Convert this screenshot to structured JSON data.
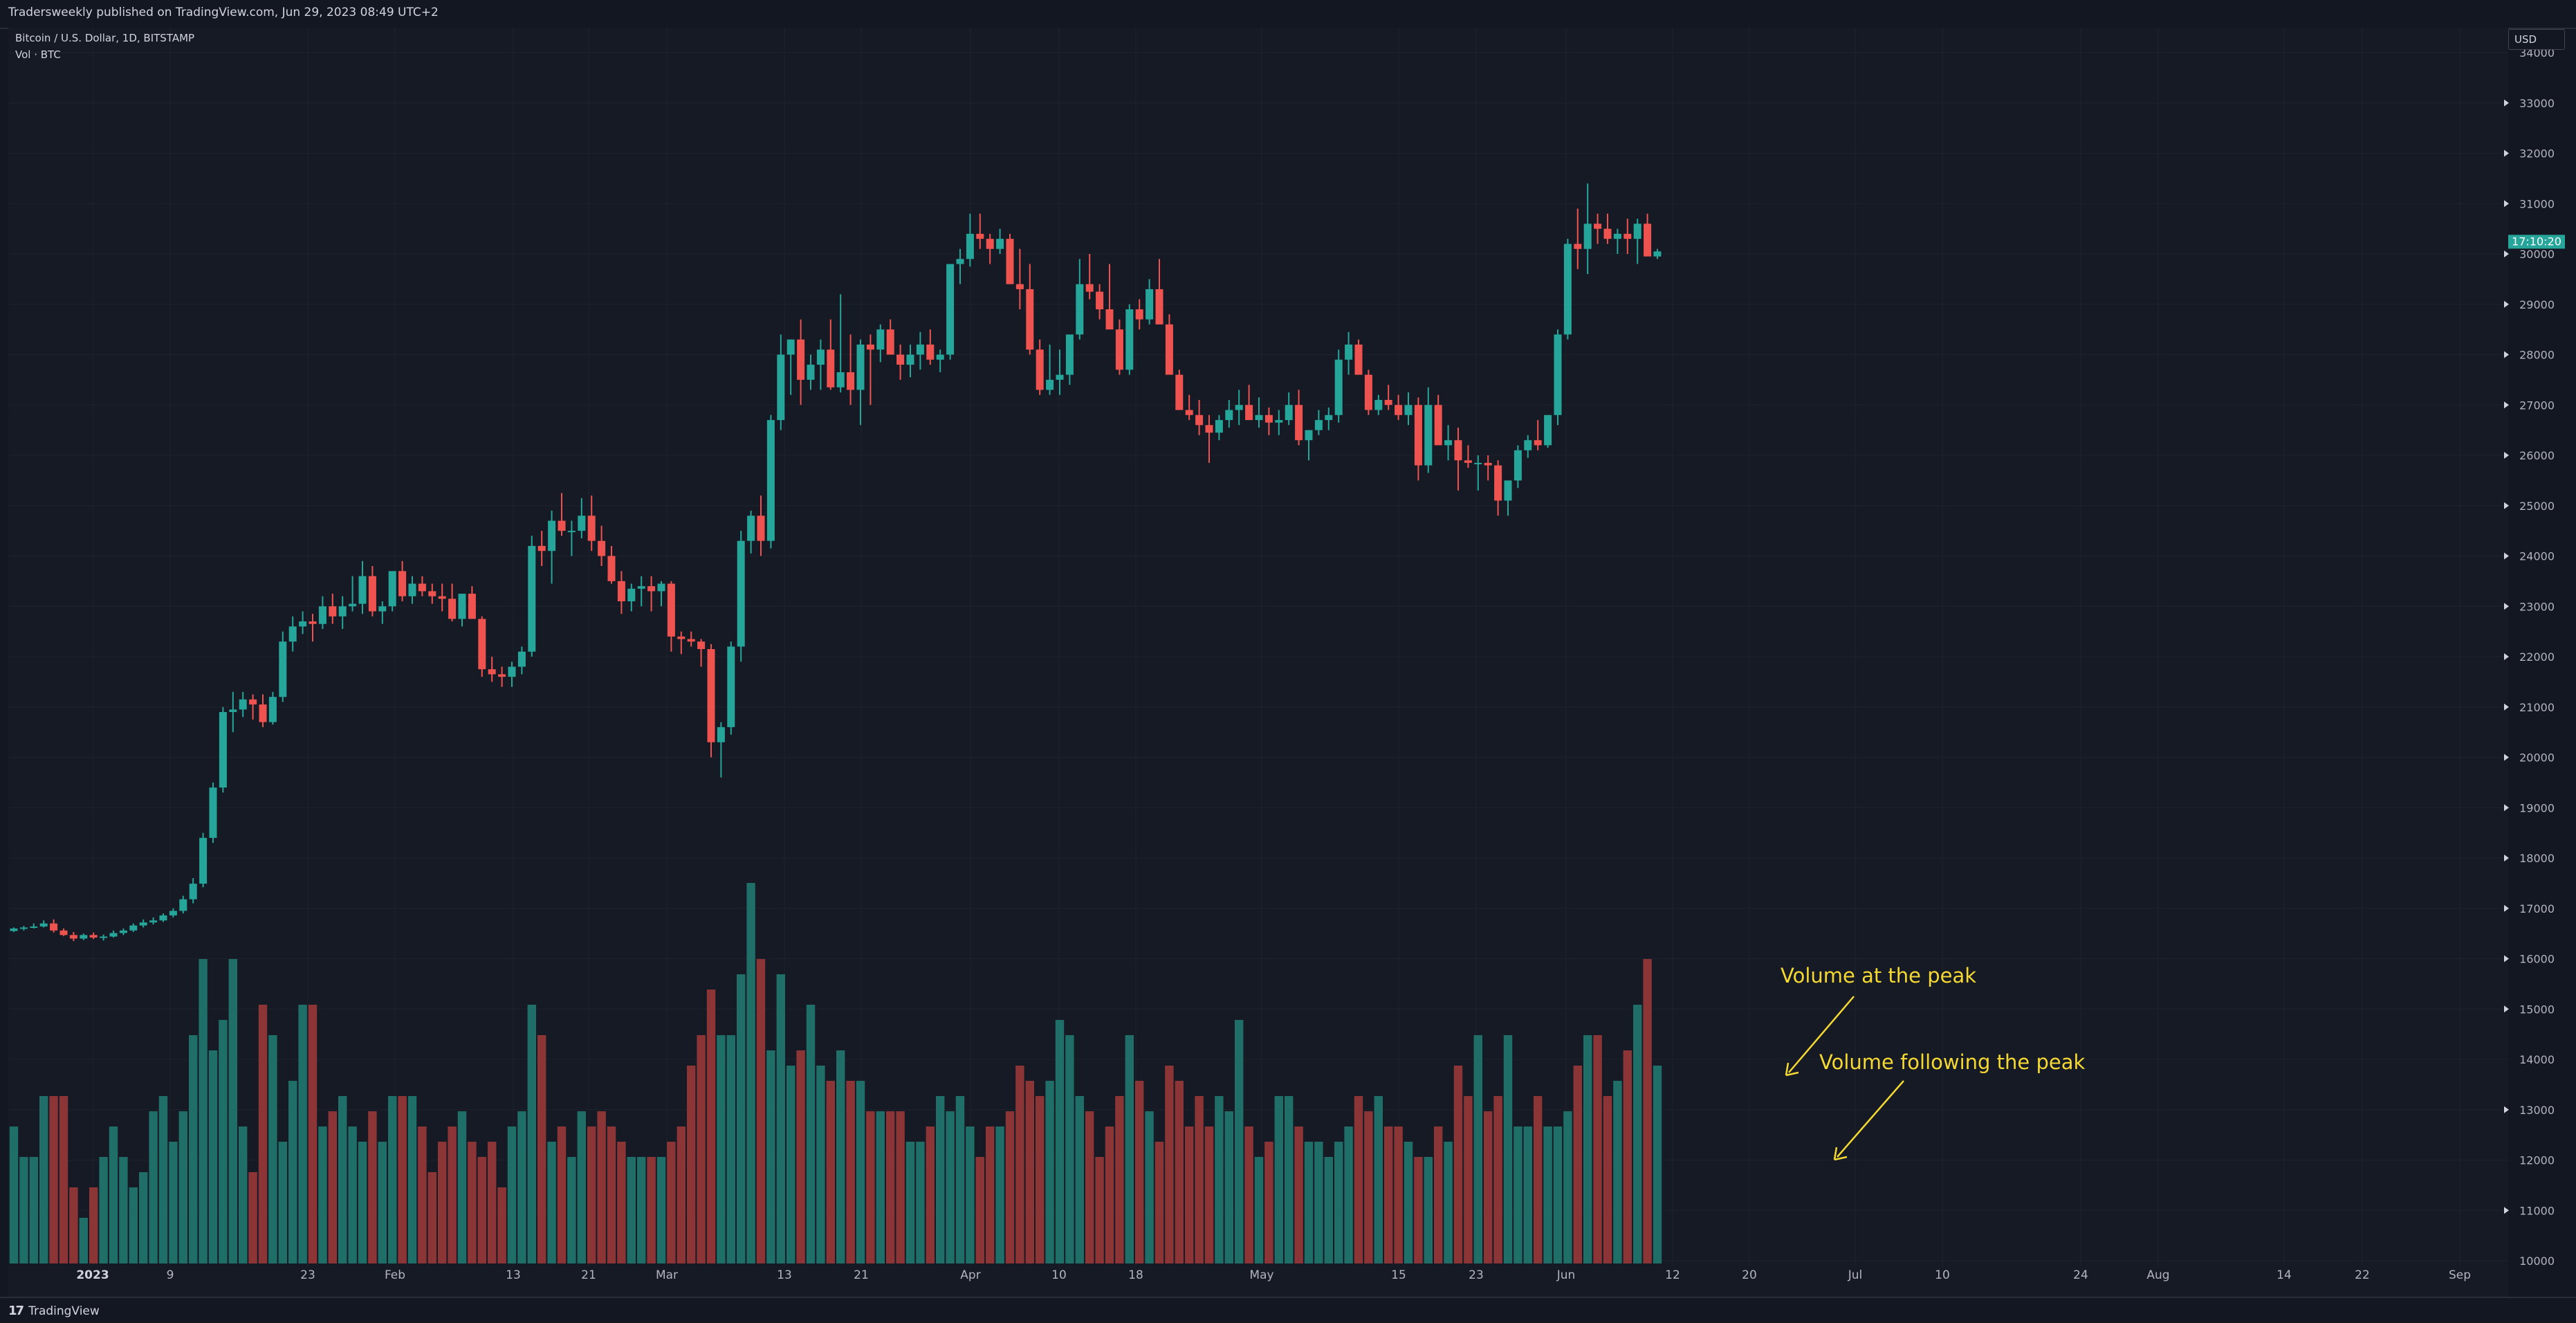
{
  "header": {
    "published": "Tradersweekly published on TradingView.com, Jun 29, 2023 08:49 UTC+2",
    "symbol": "Bitcoin / U.S. Dollar, 1D, BITSTAMP",
    "volume_label": "Vol · BTC",
    "currency": "USD"
  },
  "footer": {
    "brand": "TradingView"
  },
  "colors": {
    "up": "#26a69a",
    "down": "#ef5350",
    "vol_up": "#1f6e68",
    "vol_down": "#8b3537",
    "annotation": "#f5d932",
    "price_tag": "#26a69a"
  },
  "annotations": [
    "Volume at the peak",
    "Volume following the peak"
  ],
  "last_price_tag": "17:10:20",
  "chart_data": {
    "type": "candlestick",
    "symbol": "Bitcoin / U.S. Dollar",
    "timeframe": "1D",
    "exchange": "BITSTAMP",
    "y_axis": {
      "ticks": [
        "10000",
        "11000",
        "12000",
        "13000",
        "14000",
        "15000",
        "16000",
        "17000",
        "18000",
        "19000",
        "20000",
        "21000",
        "22000",
        "23000",
        "24000",
        "25000",
        "26000",
        "27000",
        "28000",
        "29000",
        "30000",
        "31000",
        "32000",
        "33000",
        "34000"
      ],
      "price_range": [
        16000,
        34000
      ],
      "unit": "USD"
    },
    "x_axis": {
      "ticks": [
        {
          "label": "2023",
          "bold": true
        },
        {
          "label": "9"
        },
        {
          "label": "23"
        },
        {
          "label": "Feb"
        },
        {
          "label": "13"
        },
        {
          "label": "21"
        },
        {
          "label": "Mar"
        },
        {
          "label": "13"
        },
        {
          "label": "21"
        },
        {
          "label": "Apr"
        },
        {
          "label": "10"
        },
        {
          "label": "18"
        },
        {
          "label": "May"
        },
        {
          "label": "15"
        },
        {
          "label": "23"
        },
        {
          "label": "Jun"
        },
        {
          "label": "12"
        },
        {
          "label": "20"
        },
        {
          "label": "Jul"
        },
        {
          "label": "10"
        },
        {
          "label": "24"
        },
        {
          "label": "Aug"
        },
        {
          "label": "14"
        },
        {
          "label": "22"
        },
        {
          "label": "Sep"
        }
      ]
    },
    "candles_ohlc": [
      [
        16550,
        16620,
        16530,
        16600
      ],
      [
        16600,
        16650,
        16560,
        16620
      ],
      [
        16620,
        16700,
        16600,
        16640
      ],
      [
        16640,
        16760,
        16620,
        16700
      ],
      [
        16700,
        16780,
        16520,
        16560
      ],
      [
        16560,
        16600,
        16450,
        16470
      ],
      [
        16470,
        16530,
        16350,
        16400
      ],
      [
        16400,
        16500,
        16370,
        16470
      ],
      [
        16470,
        16520,
        16390,
        16420
      ],
      [
        16420,
        16480,
        16360,
        16440
      ],
      [
        16440,
        16560,
        16420,
        16510
      ],
      [
        16510,
        16600,
        16470,
        16560
      ],
      [
        16560,
        16700,
        16530,
        16660
      ],
      [
        16660,
        16780,
        16620,
        16720
      ],
      [
        16720,
        16820,
        16680,
        16760
      ],
      [
        16760,
        16900,
        16730,
        16860
      ],
      [
        16860,
        17000,
        16820,
        16950
      ],
      [
        16950,
        17250,
        16900,
        17180
      ],
      [
        17180,
        17600,
        17100,
        17490
      ],
      [
        17490,
        18500,
        17420,
        18400
      ],
      [
        18400,
        19500,
        18300,
        19400
      ],
      [
        19400,
        21000,
        19300,
        20900
      ],
      [
        20900,
        21300,
        20500,
        20950
      ],
      [
        20950,
        21300,
        20800,
        21150
      ],
      [
        21150,
        21250,
        20750,
        21050
      ],
      [
        21050,
        21250,
        20600,
        20700
      ],
      [
        20700,
        21300,
        20650,
        21200
      ],
      [
        21200,
        22500,
        21100,
        22300
      ],
      [
        22300,
        22800,
        22100,
        22600
      ],
      [
        22600,
        22900,
        22450,
        22700
      ],
      [
        22700,
        22850,
        22300,
        22650
      ],
      [
        22650,
        23200,
        22550,
        23000
      ],
      [
        23000,
        23250,
        22650,
        22800
      ],
      [
        22800,
        23200,
        22550,
        23000
      ],
      [
        23000,
        23600,
        22900,
        23050
      ],
      [
        23050,
        23900,
        22850,
        23600
      ],
      [
        23600,
        23800,
        22800,
        22900
      ],
      [
        22900,
        23100,
        22650,
        23000
      ],
      [
        23000,
        23400,
        22900,
        23700
      ],
      [
        23700,
        23900,
        23100,
        23200
      ],
      [
        23200,
        23600,
        23050,
        23450
      ],
      [
        23450,
        23600,
        23200,
        23300
      ],
      [
        23300,
        23450,
        23050,
        23200
      ],
      [
        23200,
        23450,
        22900,
        23150
      ],
      [
        23150,
        23450,
        22700,
        22750
      ],
      [
        22750,
        23250,
        22600,
        23250
      ],
      [
        23250,
        23400,
        22800,
        22750
      ],
      [
        22750,
        22800,
        21600,
        21750
      ],
      [
        21750,
        22000,
        21500,
        21650
      ],
      [
        21650,
        21800,
        21400,
        21600
      ],
      [
        21600,
        21900,
        21400,
        21800
      ],
      [
        21800,
        22200,
        21650,
        22100
      ],
      [
        22100,
        24400,
        22000,
        24200
      ],
      [
        24200,
        24500,
        23800,
        24100
      ],
      [
        24100,
        24900,
        23450,
        24700
      ],
      [
        24700,
        25250,
        24400,
        24500
      ],
      [
        24500,
        24700,
        24000,
        24500
      ],
      [
        24500,
        25150,
        24350,
        24800
      ],
      [
        24800,
        25200,
        24100,
        24300
      ],
      [
        24300,
        24600,
        23800,
        24000
      ],
      [
        24000,
        24200,
        23450,
        23500
      ],
      [
        23500,
        23700,
        22850,
        23100
      ],
      [
        23100,
        23450,
        22900,
        23350
      ],
      [
        23350,
        23600,
        23000,
        23400
      ],
      [
        23400,
        23600,
        22900,
        23300
      ],
      [
        23300,
        23500,
        23000,
        23450
      ],
      [
        23450,
        23500,
        22100,
        22400
      ],
      [
        22400,
        22500,
        22050,
        22350
      ],
      [
        22350,
        22500,
        22200,
        22300
      ],
      [
        22300,
        22350,
        21800,
        22150
      ],
      [
        22150,
        22250,
        20000,
        20300
      ],
      [
        20300,
        20700,
        19600,
        20600
      ],
      [
        20600,
        22300,
        20450,
        22200
      ],
      [
        22200,
        24500,
        21900,
        24300
      ],
      [
        24300,
        24900,
        24050,
        24800
      ],
      [
        24800,
        25200,
        24000,
        24300
      ],
      [
        24300,
        26800,
        24150,
        26700
      ],
      [
        26700,
        28400,
        26500,
        28000
      ],
      [
        28000,
        28300,
        27200,
        28300
      ],
      [
        28300,
        28700,
        27000,
        27500
      ],
      [
        27500,
        28000,
        27300,
        27800
      ],
      [
        27800,
        28300,
        27300,
        28100
      ],
      [
        28100,
        28700,
        27300,
        27350
      ],
      [
        27350,
        29200,
        27250,
        27650
      ],
      [
        27650,
        28400,
        27000,
        27300
      ],
      [
        27300,
        28300,
        26600,
        28200
      ],
      [
        28200,
        28400,
        27000,
        28100
      ],
      [
        28100,
        28600,
        27850,
        28500
      ],
      [
        28500,
        28700,
        28100,
        28000
      ],
      [
        28000,
        28200,
        27500,
        27800
      ],
      [
        27800,
        28200,
        27550,
        28000
      ],
      [
        28000,
        28450,
        27700,
        28200
      ],
      [
        28200,
        28500,
        27800,
        27900
      ],
      [
        27900,
        28100,
        27650,
        28000
      ],
      [
        28000,
        29500,
        27900,
        29800
      ],
      [
        29800,
        30100,
        29400,
        29900
      ],
      [
        29900,
        30800,
        29750,
        30400
      ],
      [
        30400,
        30800,
        30100,
        30300
      ],
      [
        30300,
        30400,
        29800,
        30100
      ],
      [
        30100,
        30500,
        30000,
        30300
      ],
      [
        30300,
        30400,
        29600,
        29400
      ],
      [
        29400,
        30100,
        28900,
        29300
      ],
      [
        29300,
        29800,
        28000,
        28100
      ],
      [
        28100,
        28300,
        27200,
        27300
      ],
      [
        27300,
        28200,
        27200,
        27500
      ],
      [
        27500,
        28100,
        27200,
        27600
      ],
      [
        27600,
        28300,
        27400,
        28400
      ],
      [
        28400,
        29900,
        28300,
        29400
      ],
      [
        29400,
        30000,
        29100,
        29250
      ],
      [
        29250,
        29400,
        28700,
        28900
      ],
      [
        28900,
        29800,
        28800,
        28500
      ],
      [
        28500,
        28700,
        27600,
        27700
      ],
      [
        27700,
        29000,
        27600,
        28900
      ],
      [
        28900,
        29100,
        28500,
        28700
      ],
      [
        28700,
        29500,
        28600,
        29300
      ],
      [
        29300,
        29900,
        28800,
        28600
      ],
      [
        28600,
        28800,
        27700,
        27600
      ],
      [
        27600,
        27700,
        26900,
        26900
      ],
      [
        26900,
        27200,
        26700,
        26800
      ],
      [
        26800,
        27100,
        26400,
        26600
      ],
      [
        26600,
        26800,
        25850,
        26450
      ],
      [
        26450,
        26800,
        26300,
        26700
      ],
      [
        26700,
        27100,
        26550,
        26900
      ],
      [
        26900,
        27300,
        26600,
        27000
      ],
      [
        27000,
        27400,
        26800,
        26700
      ],
      [
        26700,
        27150,
        26550,
        26800
      ],
      [
        26800,
        26950,
        26400,
        26650
      ],
      [
        26650,
        26900,
        26400,
        26700
      ],
      [
        26700,
        27250,
        26600,
        27000
      ],
      [
        27000,
        27300,
        26200,
        26300
      ],
      [
        26300,
        26500,
        25900,
        26500
      ],
      [
        26500,
        26900,
        26400,
        26700
      ],
      [
        26700,
        26950,
        26500,
        26800
      ],
      [
        26800,
        28100,
        26650,
        27900
      ],
      [
        27900,
        28450,
        27600,
        28200
      ],
      [
        28200,
        28300,
        27700,
        27600
      ],
      [
        27600,
        27700,
        26800,
        26900
      ],
      [
        26900,
        27200,
        26800,
        27100
      ],
      [
        27100,
        27400,
        26900,
        27000
      ],
      [
        27000,
        27200,
        26700,
        26800
      ],
      [
        26800,
        27250,
        26600,
        27000
      ],
      [
        27000,
        27150,
        25500,
        25800
      ],
      [
        25800,
        27350,
        25650,
        27000
      ],
      [
        27000,
        27200,
        26300,
        26200
      ],
      [
        26200,
        26600,
        25900,
        26300
      ],
      [
        26300,
        26550,
        25300,
        25900
      ],
      [
        25900,
        26200,
        25750,
        25850
      ],
      [
        25850,
        26000,
        25300,
        25850
      ],
      [
        25850,
        26000,
        25500,
        25800
      ],
      [
        25800,
        25900,
        24800,
        25100
      ],
      [
        25100,
        25500,
        24800,
        25500
      ],
      [
        25500,
        26200,
        25350,
        26100
      ],
      [
        26100,
        26400,
        25950,
        26300
      ],
      [
        26300,
        26700,
        26100,
        26200
      ],
      [
        26200,
        26800,
        26150,
        26800
      ],
      [
        26800,
        28500,
        26600,
        28400
      ],
      [
        28400,
        30300,
        28300,
        30200
      ],
      [
        30200,
        30900,
        29700,
        30100
      ],
      [
        30100,
        31400,
        29600,
        30600
      ],
      [
        30600,
        30800,
        30200,
        30500
      ],
      [
        30500,
        30800,
        30200,
        30300
      ],
      [
        30300,
        30500,
        30000,
        30400
      ],
      [
        30400,
        30700,
        30000,
        30300
      ],
      [
        30300,
        30700,
        29800,
        30600
      ],
      [
        30600,
        30800,
        30000,
        29950
      ],
      [
        29950,
        30100,
        29900,
        30050
      ]
    ],
    "volume_rel": [
      0.45,
      0.35,
      0.35,
      0.55,
      0.55,
      0.55,
      0.25,
      0.15,
      0.25,
      0.35,
      0.45,
      0.35,
      0.25,
      0.3,
      0.5,
      0.55,
      0.4,
      0.5,
      0.75,
      1.0,
      0.7,
      0.8,
      1.0,
      0.45,
      0.3,
      0.85,
      0.75,
      0.4,
      0.6,
      0.85,
      0.85,
      0.45,
      0.5,
      0.55,
      0.45,
      0.4,
      0.5,
      0.4,
      0.55,
      0.55,
      0.55,
      0.45,
      0.3,
      0.4,
      0.45,
      0.5,
      0.4,
      0.35,
      0.4,
      0.25,
      0.45,
      0.5,
      0.85,
      0.75,
      0.4,
      0.45,
      0.35,
      0.5,
      0.45,
      0.5,
      0.45,
      0.4,
      0.35,
      0.35,
      0.35,
      0.35,
      0.4,
      0.45,
      0.65,
      0.75,
      0.9,
      0.75,
      0.75,
      0.95,
      1.25,
      1.0,
      0.7,
      0.95,
      0.65,
      0.7,
      0.85,
      0.65,
      0.6,
      0.7,
      0.6,
      0.6,
      0.5,
      0.5,
      0.5,
      0.5,
      0.4,
      0.4,
      0.45,
      0.55,
      0.5,
      0.55,
      0.45,
      0.35,
      0.45,
      0.45,
      0.5,
      0.65,
      0.6,
      0.55,
      0.6,
      0.8,
      0.75,
      0.55,
      0.5,
      0.35,
      0.45,
      0.55,
      0.75,
      0.6,
      0.5,
      0.4,
      0.65,
      0.6,
      0.45,
      0.55,
      0.45,
      0.55,
      0.5,
      0.8,
      0.45,
      0.35,
      0.4,
      0.55,
      0.55,
      0.45,
      0.4,
      0.4,
      0.35,
      0.4,
      0.45,
      0.55,
      0.5,
      0.55,
      0.45,
      0.45,
      0.4,
      0.35,
      0.35,
      0.45,
      0.4,
      0.65,
      0.55,
      0.75,
      0.5,
      0.55,
      0.75,
      0.45,
      0.45,
      0.55,
      0.45,
      0.45,
      0.5,
      0.65,
      0.75,
      0.75,
      0.55,
      0.6,
      0.7,
      0.85,
      1.0,
      0.65
    ]
  }
}
